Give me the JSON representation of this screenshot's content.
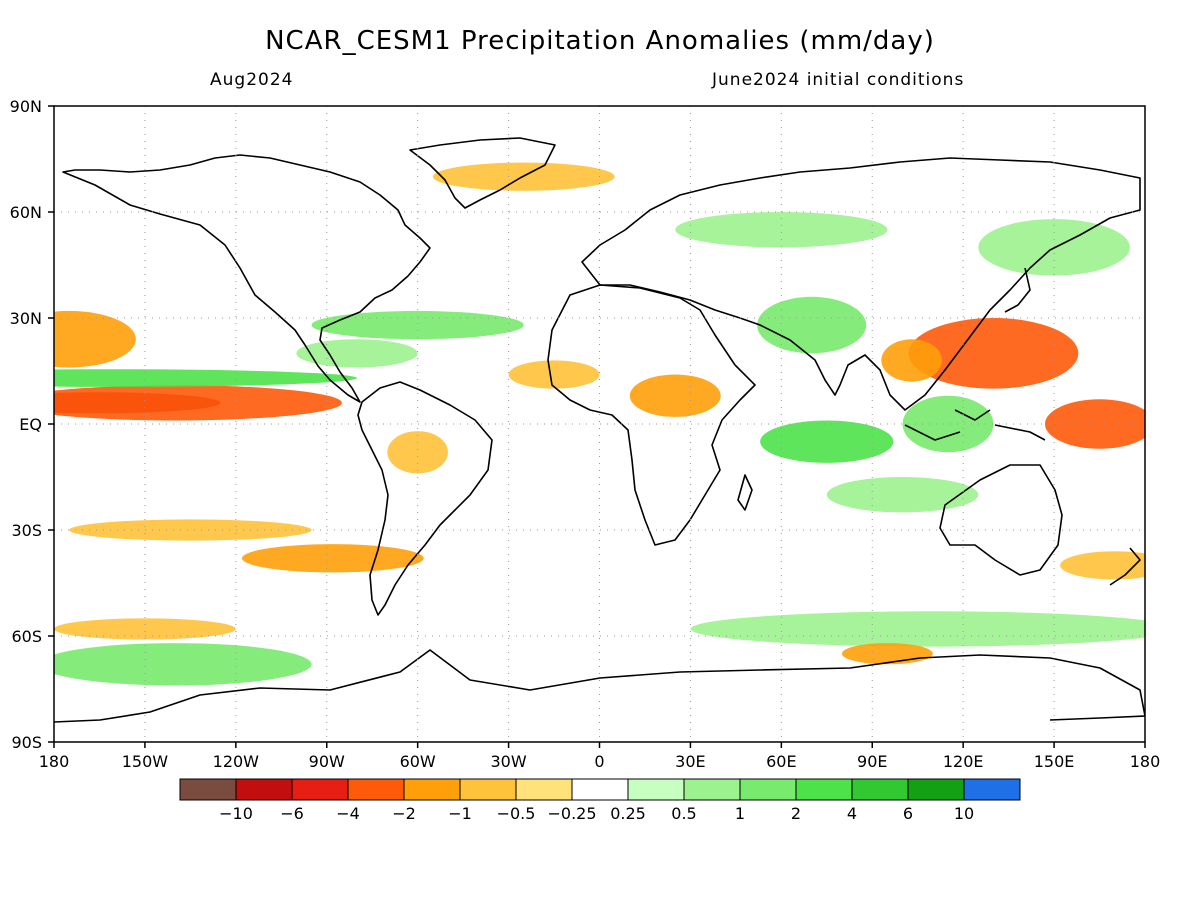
{
  "title": "NCAR_CESM1 Precipitation Anomalies (mm/day)",
  "valid_month": "Aug2024",
  "init_conditions": "June2024 initial conditions",
  "map": {
    "lat_ticks": [
      {
        "value": 90,
        "label": "90N"
      },
      {
        "value": 60,
        "label": "60N"
      },
      {
        "value": 30,
        "label": "30N"
      },
      {
        "value": 0,
        "label": "EQ"
      },
      {
        "value": -30,
        "label": "30S"
      },
      {
        "value": -60,
        "label": "60S"
      },
      {
        "value": -90,
        "label": "90S"
      }
    ],
    "lon_ticks": [
      {
        "value": 0,
        "label": "180"
      },
      {
        "value": 30,
        "label": "150W"
      },
      {
        "value": 60,
        "label": "120W"
      },
      {
        "value": 90,
        "label": "90W"
      },
      {
        "value": 120,
        "label": "60W"
      },
      {
        "value": 150,
        "label": "30W"
      },
      {
        "value": 180,
        "label": "0"
      },
      {
        "value": 210,
        "label": "30E"
      },
      {
        "value": 240,
        "label": "60E"
      },
      {
        "value": 270,
        "label": "90E"
      },
      {
        "value": 300,
        "label": "120E"
      },
      {
        "value": 330,
        "label": "150E"
      },
      {
        "value": 360,
        "label": "180"
      }
    ],
    "grid": true,
    "projection": "cylindrical equidistant"
  },
  "colorbar": {
    "colors": [
      "#7a4c40",
      "#c20e0e",
      "#e61e14",
      "#ff5a0a",
      "#ff9f0a",
      "#ffc23a",
      "#ffe27a",
      "#ffffff",
      "#c6ffc0",
      "#9cf28e",
      "#78ea6e",
      "#4ee24a",
      "#32c832",
      "#14a014",
      "#1f6fe6"
    ],
    "labels": [
      "-10",
      "-6",
      "-4",
      "-2",
      "-1",
      "-0.5",
      "-0.25",
      "0.25",
      "0.5",
      "1",
      "2",
      "4",
      "6",
      "10"
    ]
  },
  "anomaly_regions": [
    {
      "lon": 15,
      "lat": 6,
      "rx": 40,
      "ry": 3,
      "level": "-6"
    },
    {
      "lon": 40,
      "lat": 6,
      "rx": 55,
      "ry": 5,
      "level": "-2"
    },
    {
      "lon": 5,
      "lat": 24,
      "rx": 22,
      "ry": 8,
      "level": "-1"
    },
    {
      "lon": 20,
      "lat": 13,
      "rx": 80,
      "ry": 2.5,
      "level": "2"
    },
    {
      "lon": 345,
      "lat": 0,
      "rx": 18,
      "ry": 7,
      "level": "-2"
    },
    {
      "lon": 310,
      "lat": 20,
      "rx": 28,
      "ry": 10,
      "level": "-2"
    },
    {
      "lon": 283,
      "lat": 18,
      "rx": 10,
      "ry": 6,
      "level": "-1"
    },
    {
      "lon": 250,
      "lat": 28,
      "rx": 18,
      "ry": 8,
      "level": "1"
    },
    {
      "lon": 255,
      "lat": -5,
      "rx": 22,
      "ry": 6,
      "level": "2"
    },
    {
      "lon": 295,
      "lat": 0,
      "rx": 15,
      "ry": 8,
      "level": "1"
    },
    {
      "lon": 205,
      "lat": 8,
      "rx": 15,
      "ry": 6,
      "level": "-1"
    },
    {
      "lon": 165,
      "lat": 14,
      "rx": 15,
      "ry": 4,
      "level": "-0.5"
    },
    {
      "lon": 120,
      "lat": 28,
      "rx": 35,
      "ry": 4,
      "level": "1"
    },
    {
      "lon": 100,
      "lat": 20,
      "rx": 20,
      "ry": 4,
      "level": "0.5"
    },
    {
      "lon": 92,
      "lat": -38,
      "rx": 30,
      "ry": 4,
      "level": "-1"
    },
    {
      "lon": 45,
      "lat": -30,
      "rx": 40,
      "ry": 3,
      "level": "-0.5"
    },
    {
      "lon": 120,
      "lat": -8,
      "rx": 10,
      "ry": 6,
      "level": "-0.5"
    },
    {
      "lon": 40,
      "lat": -68,
      "rx": 45,
      "ry": 6,
      "level": "1"
    },
    {
      "lon": 290,
      "lat": -58,
      "rx": 80,
      "ry": 5,
      "level": "0.5"
    },
    {
      "lon": 30,
      "lat": -58,
      "rx": 30,
      "ry": 3,
      "level": "-0.5"
    },
    {
      "lon": 275,
      "lat": -65,
      "rx": 15,
      "ry": 3,
      "level": "-1"
    },
    {
      "lon": 155,
      "lat": 70,
      "rx": 30,
      "ry": 4,
      "level": "-0.5"
    },
    {
      "lon": 240,
      "lat": 55,
      "rx": 35,
      "ry": 5,
      "level": "0.5"
    },
    {
      "lon": 330,
      "lat": 50,
      "rx": 25,
      "ry": 8,
      "level": "0.5"
    },
    {
      "lon": 280,
      "lat": -20,
      "rx": 25,
      "ry": 5,
      "level": "0.5"
    },
    {
      "lon": 350,
      "lat": -40,
      "rx": 18,
      "ry": 4,
      "level": "-0.5"
    }
  ]
}
